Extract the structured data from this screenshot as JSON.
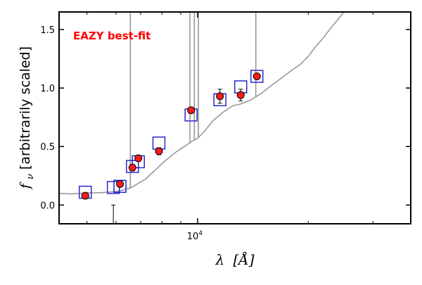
{
  "chart_data": {
    "type": "scatter",
    "annotation": "EAZY best-fit",
    "xlabel": "λ [Å]",
    "ylabel": "f_ν [arbitrarily scaled]",
    "ylabel_prefix": "f",
    "ylabel_sub": "ν",
    "ylabel_rest": " [arbitrarily scaled]",
    "xlabel_main": "λ",
    "xlabel_unit": "[Å]",
    "x_scale": "log",
    "xlim": [
      4200,
      38000
    ],
    "ylim": [
      -0.16,
      1.65
    ],
    "y_ticks": [
      0.0,
      0.5,
      1.0,
      1.5
    ],
    "y_tick_labels": [
      "0.0",
      "0.5",
      "1.0",
      "1.5"
    ],
    "x_major_ticks": [
      10000
    ],
    "x_major_tick_labels": [
      "10^4"
    ],
    "x_minor_ticks": [
      5000,
      6000,
      7000,
      8000,
      9000,
      20000,
      30000
    ],
    "grid": false,
    "colors": {
      "model_line": "#999999",
      "observed_fill": "#ff1a1a",
      "observed_edge": "#000000",
      "model_box": "#1a1acc",
      "annotation": "#ff0000"
    },
    "series": [
      {
        "kind": "line",
        "role": "best-fit template",
        "points": [
          [
            4200,
            0.1
          ],
          [
            4500,
            0.095
          ],
          [
            4800,
            0.1
          ],
          [
            5100,
            0.105
          ],
          [
            5400,
            0.105
          ],
          [
            5700,
            0.11
          ],
          [
            6000,
            0.115
          ],
          [
            6300,
            0.13
          ],
          [
            6600,
            0.15
          ],
          [
            6900,
            0.185
          ],
          [
            7200,
            0.22
          ],
          [
            7500,
            0.27
          ],
          [
            7800,
            0.32
          ],
          [
            8100,
            0.37
          ],
          [
            8400,
            0.41
          ],
          [
            8700,
            0.45
          ],
          [
            9000,
            0.48
          ],
          [
            9300,
            0.51
          ],
          [
            9700,
            0.55
          ],
          [
            10000,
            0.57
          ],
          [
            10500,
            0.64
          ],
          [
            11000,
            0.72
          ],
          [
            11800,
            0.8
          ],
          [
            12500,
            0.85
          ],
          [
            13000,
            0.86
          ],
          [
            14000,
            0.9
          ],
          [
            15000,
            0.96
          ],
          [
            16000,
            1.03
          ],
          [
            17000,
            1.09
          ],
          [
            18000,
            1.15
          ],
          [
            19000,
            1.2
          ],
          [
            20000,
            1.27
          ],
          [
            21000,
            1.36
          ],
          [
            22000,
            1.43
          ],
          [
            23000,
            1.51
          ],
          [
            24000,
            1.58
          ],
          [
            25000,
            1.65
          ]
        ],
        "emission_lines": [
          {
            "x": 6563,
            "peak": 1.65
          },
          {
            "x": 9530,
            "peak": 1.65
          },
          {
            "x": 9800,
            "peak": 1.65
          },
          {
            "x": 10050,
            "peak": 1.65
          },
          {
            "x": 14400,
            "peak": 1.65
          }
        ]
      },
      {
        "kind": "points",
        "role": "observed photometry",
        "points": [
          {
            "x": 4950,
            "y": 0.08,
            "err": 0.01
          },
          {
            "x": 6150,
            "y": 0.18,
            "err": 0.01
          },
          {
            "x": 6650,
            "y": 0.32,
            "err": 0.01
          },
          {
            "x": 6900,
            "y": 0.4,
            "err": 0.01
          },
          {
            "x": 7850,
            "y": 0.46,
            "err": 0.03
          },
          {
            "x": 9600,
            "y": 0.81,
            "err": 0.02
          },
          {
            "x": 11500,
            "y": 0.93,
            "err": 0.06
          },
          {
            "x": 13100,
            "y": 0.94,
            "err": 0.05
          },
          {
            "x": 14500,
            "y": 1.1,
            "err": 0.02
          }
        ],
        "limit": {
          "x": 5900,
          "y": 0.0
        }
      },
      {
        "kind": "boxes",
        "role": "model photometry",
        "points": [
          {
            "x": 4950,
            "y": 0.11
          },
          {
            "x": 5900,
            "y": 0.15
          },
          {
            "x": 6150,
            "y": 0.16
          },
          {
            "x": 6650,
            "y": 0.33
          },
          {
            "x": 6900,
            "y": 0.37
          },
          {
            "x": 7850,
            "y": 0.53
          },
          {
            "x": 9600,
            "y": 0.77
          },
          {
            "x": 11500,
            "y": 0.9
          },
          {
            "x": 13100,
            "y": 1.01
          },
          {
            "x": 14500,
            "y": 1.1
          }
        ]
      }
    ]
  }
}
